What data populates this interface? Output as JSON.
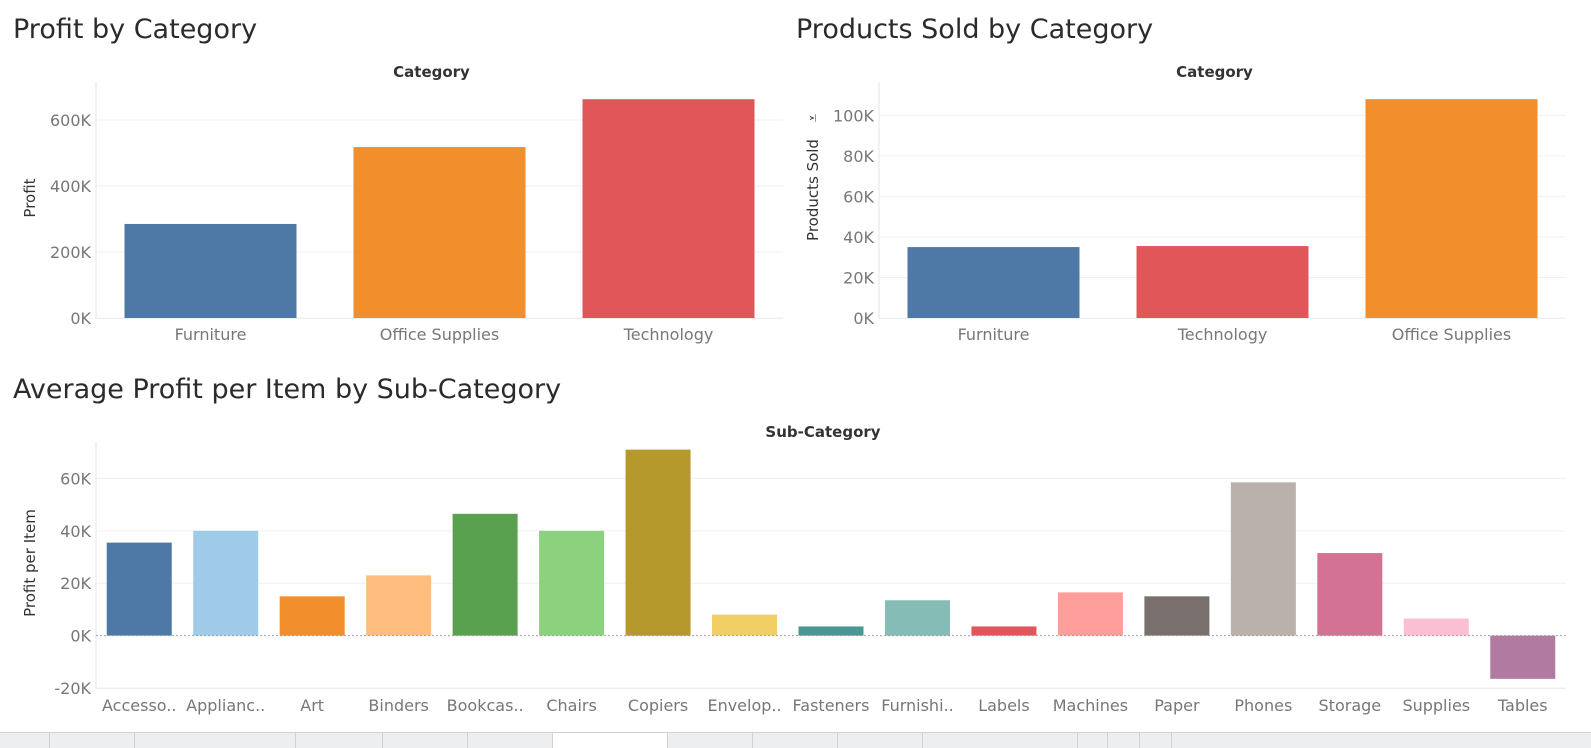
{
  "chart_data": [
    {
      "id": "profit",
      "type": "bar",
      "title": "Profit by Category",
      "top_axis_label": "Category",
      "ylabel": "Profit",
      "categories": [
        "Furniture",
        "Office Supplies",
        "Technology"
      ],
      "values": [
        285000,
        518000,
        663000
      ],
      "colors": [
        "#4e79a7",
        "#f28e2b",
        "#e15759"
      ],
      "ylim": [
        0,
        700000
      ],
      "yticks": [
        0,
        200000,
        400000,
        600000
      ],
      "ytick_labels": [
        "0K",
        "200K",
        "400K",
        "600K"
      ]
    },
    {
      "id": "products",
      "type": "bar",
      "title": "Products Sold by Category",
      "top_axis_label": "Category",
      "ylabel": "Products Sold",
      "ylabel_sort_glyph": "⩡",
      "categories": [
        "Furniture",
        "Technology",
        "Office Supplies"
      ],
      "values": [
        35000,
        35500,
        108000
      ],
      "colors": [
        "#4e79a7",
        "#e15759",
        "#f28e2b"
      ],
      "ylim": [
        0,
        114000
      ],
      "yticks": [
        0,
        20000,
        40000,
        60000,
        80000,
        100000
      ],
      "ytick_labels": [
        "0K",
        "20K",
        "40K",
        "60K",
        "80K",
        "100K"
      ]
    },
    {
      "id": "avg",
      "type": "bar",
      "title": "Average Profit per Item by Sub-Category",
      "top_axis_label": "Sub-Category",
      "ylabel": "Profit per Item",
      "categories": [
        "Accesso..",
        "Applianc..",
        "Art",
        "Binders",
        "Bookcas..",
        "Chairs",
        "Copiers",
        "Envelop..",
        "Fasteners",
        "Furnishi..",
        "Labels",
        "Machines",
        "Paper",
        "Phones",
        "Storage",
        "Supplies",
        "Tables"
      ],
      "values": [
        35500,
        40000,
        15000,
        23000,
        46500,
        40000,
        71000,
        8000,
        3500,
        13500,
        3500,
        16500,
        15000,
        58500,
        31500,
        6500,
        -16500
      ],
      "colors": [
        "#4e79a7",
        "#a0cbe8",
        "#f28e2b",
        "#ffbe7d",
        "#59a14f",
        "#8cd17d",
        "#b6992d",
        "#f1ce63",
        "#499894",
        "#86bcb6",
        "#e15759",
        "#ff9d9a",
        "#79706e",
        "#bab0ac",
        "#d37295",
        "#fabfd2",
        "#b07aa1"
      ],
      "ylim": [
        -20000,
        72000
      ],
      "yticks": [
        -20000,
        0,
        20000,
        40000,
        60000
      ],
      "ytick_labels": [
        "-20K",
        "0K",
        "20K",
        "40K",
        "60K"
      ]
    }
  ]
}
